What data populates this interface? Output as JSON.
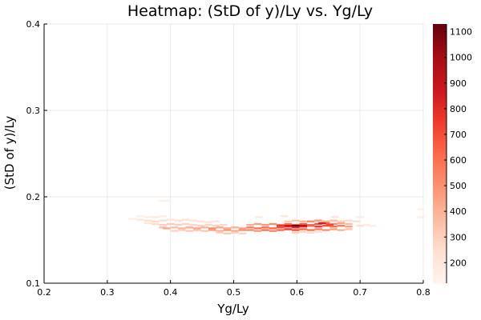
{
  "chart_data": {
    "type": "heatmap",
    "title": "Heatmap: (StD of y)/Ly vs. Yg/Ly",
    "xlabel": "Yg/Ly",
    "ylabel": "(StD of y)/Ly",
    "xlim": [
      0.2,
      0.8
    ],
    "ylim": [
      0.1,
      0.4
    ],
    "xticks": [
      "0.2",
      "0.3",
      "0.4",
      "0.5",
      "0.6",
      "0.7",
      "0.8"
    ],
    "yticks": [
      "0.1",
      "0.2",
      "0.3",
      "0.4"
    ],
    "grid": true,
    "colorbar": {
      "colormap": "Reds",
      "range": [
        120,
        1130
      ],
      "ticks": [
        "200",
        "300",
        "400",
        "500",
        "600",
        "700",
        "800",
        "900",
        "1000",
        "1100"
      ]
    },
    "cells": [
      [
        0.388,
        0.1955,
        150
      ],
      [
        0.394,
        0.1955,
        140
      ],
      [
        0.352,
        0.1775,
        150
      ],
      [
        0.364,
        0.1765,
        170
      ],
      [
        0.376,
        0.1765,
        190
      ],
      [
        0.388,
        0.1775,
        160
      ],
      [
        0.34,
        0.1745,
        160
      ],
      [
        0.352,
        0.1735,
        200
      ],
      [
        0.364,
        0.1725,
        240
      ],
      [
        0.376,
        0.1715,
        270
      ],
      [
        0.388,
        0.1725,
        240
      ],
      [
        0.4,
        0.1735,
        220
      ],
      [
        0.412,
        0.1725,
        250
      ],
      [
        0.424,
        0.1735,
        230
      ],
      [
        0.436,
        0.1725,
        210
      ],
      [
        0.448,
        0.1715,
        230
      ],
      [
        0.46,
        0.1705,
        220
      ],
      [
        0.472,
        0.1715,
        210
      ],
      [
        0.364,
        0.1695,
        210
      ],
      [
        0.376,
        0.1685,
        260
      ],
      [
        0.388,
        0.1675,
        300
      ],
      [
        0.4,
        0.1685,
        320
      ],
      [
        0.412,
        0.1675,
        300
      ],
      [
        0.424,
        0.1685,
        290
      ],
      [
        0.436,
        0.1675,
        280
      ],
      [
        0.448,
        0.1665,
        300
      ],
      [
        0.46,
        0.1675,
        280
      ],
      [
        0.472,
        0.1665,
        290
      ],
      [
        0.484,
        0.1675,
        270
      ],
      [
        0.388,
        0.1645,
        360
      ],
      [
        0.394,
        0.1635,
        430
      ],
      [
        0.406,
        0.1645,
        360
      ],
      [
        0.418,
        0.1635,
        390
      ],
      [
        0.43,
        0.1645,
        420
      ],
      [
        0.442,
        0.1635,
        450
      ],
      [
        0.454,
        0.1645,
        400
      ],
      [
        0.466,
        0.1635,
        520
      ],
      [
        0.478,
        0.1645,
        440
      ],
      [
        0.49,
        0.1635,
        430
      ],
      [
        0.502,
        0.1645,
        410
      ],
      [
        0.514,
        0.1635,
        450
      ],
      [
        0.406,
        0.1605,
        280
      ],
      [
        0.418,
        0.1615,
        300
      ],
      [
        0.43,
        0.1605,
        320
      ],
      [
        0.442,
        0.1615,
        340
      ],
      [
        0.454,
        0.1605,
        330
      ],
      [
        0.466,
        0.1615,
        460
      ],
      [
        0.478,
        0.1605,
        400
      ],
      [
        0.49,
        0.1615,
        480
      ],
      [
        0.502,
        0.1605,
        420
      ],
      [
        0.514,
        0.1615,
        500
      ],
      [
        0.478,
        0.1585,
        300
      ],
      [
        0.49,
        0.1575,
        320
      ],
      [
        0.502,
        0.1585,
        300
      ],
      [
        0.514,
        0.1575,
        280
      ],
      [
        0.526,
        0.1645,
        560
      ],
      [
        0.538,
        0.1635,
        600
      ],
      [
        0.55,
        0.1645,
        620
      ],
      [
        0.562,
        0.1635,
        640
      ],
      [
        0.574,
        0.1645,
        700
      ],
      [
        0.586,
        0.1655,
        780
      ],
      [
        0.598,
        0.1645,
        820
      ],
      [
        0.61,
        0.1655,
        760
      ],
      [
        0.622,
        0.1665,
        700
      ],
      [
        0.634,
        0.1655,
        760
      ],
      [
        0.646,
        0.1665,
        680
      ],
      [
        0.658,
        0.1655,
        620
      ],
      [
        0.67,
        0.1665,
        560
      ],
      [
        0.682,
        0.1655,
        450
      ],
      [
        0.526,
        0.1615,
        520
      ],
      [
        0.538,
        0.1605,
        480
      ],
      [
        0.55,
        0.1615,
        600
      ],
      [
        0.562,
        0.1605,
        540
      ],
      [
        0.574,
        0.1615,
        620
      ],
      [
        0.586,
        0.1625,
        760
      ],
      [
        0.598,
        0.1615,
        700
      ],
      [
        0.61,
        0.1625,
        640
      ],
      [
        0.622,
        0.1615,
        600
      ],
      [
        0.634,
        0.1625,
        560
      ],
      [
        0.646,
        0.1615,
        500
      ],
      [
        0.658,
        0.1625,
        460
      ],
      [
        0.67,
        0.1615,
        400
      ],
      [
        0.682,
        0.1625,
        340
      ],
      [
        0.526,
        0.1675,
        420
      ],
      [
        0.538,
        0.1685,
        460
      ],
      [
        0.55,
        0.1675,
        480
      ],
      [
        0.562,
        0.1685,
        520
      ],
      [
        0.574,
        0.1675,
        560
      ],
      [
        0.586,
        0.1685,
        600
      ],
      [
        0.598,
        0.1675,
        640
      ],
      [
        0.61,
        0.1685,
        660
      ],
      [
        0.622,
        0.1675,
        620
      ],
      [
        0.634,
        0.1685,
        700
      ],
      [
        0.646,
        0.1695,
        640
      ],
      [
        0.658,
        0.1685,
        520
      ],
      [
        0.67,
        0.1695,
        440
      ],
      [
        0.682,
        0.1685,
        360
      ],
      [
        0.598,
        0.1665,
        1100
      ],
      [
        0.61,
        0.1665,
        940
      ],
      [
        0.586,
        0.1665,
        880
      ],
      [
        0.64,
        0.1695,
        860
      ],
      [
        0.574,
        0.1665,
        760
      ],
      [
        0.652,
        0.1675,
        720
      ],
      [
        0.622,
        0.1715,
        520
      ],
      [
        0.634,
        0.1725,
        480
      ],
      [
        0.646,
        0.1715,
        420
      ],
      [
        0.658,
        0.1725,
        360
      ],
      [
        0.61,
        0.1715,
        400
      ],
      [
        0.598,
        0.1725,
        340
      ],
      [
        0.586,
        0.1715,
        300
      ],
      [
        0.67,
        0.1715,
        300
      ],
      [
        0.682,
        0.1725,
        260
      ],
      [
        0.694,
        0.1715,
        240
      ],
      [
        0.598,
        0.1585,
        300
      ],
      [
        0.61,
        0.1595,
        280
      ],
      [
        0.622,
        0.1585,
        260
      ],
      [
        0.634,
        0.1595,
        250
      ],
      [
        0.7,
        0.1665,
        240
      ],
      [
        0.71,
        0.1675,
        180
      ],
      [
        0.72,
        0.1665,
        160
      ],
      [
        0.54,
        0.1765,
        190
      ],
      [
        0.58,
        0.1775,
        200
      ],
      [
        0.66,
        0.1765,
        220
      ],
      [
        0.7,
        0.1765,
        180
      ],
      [
        0.796,
        0.1855,
        150
      ],
      [
        0.796,
        0.1765,
        150
      ]
    ]
  }
}
